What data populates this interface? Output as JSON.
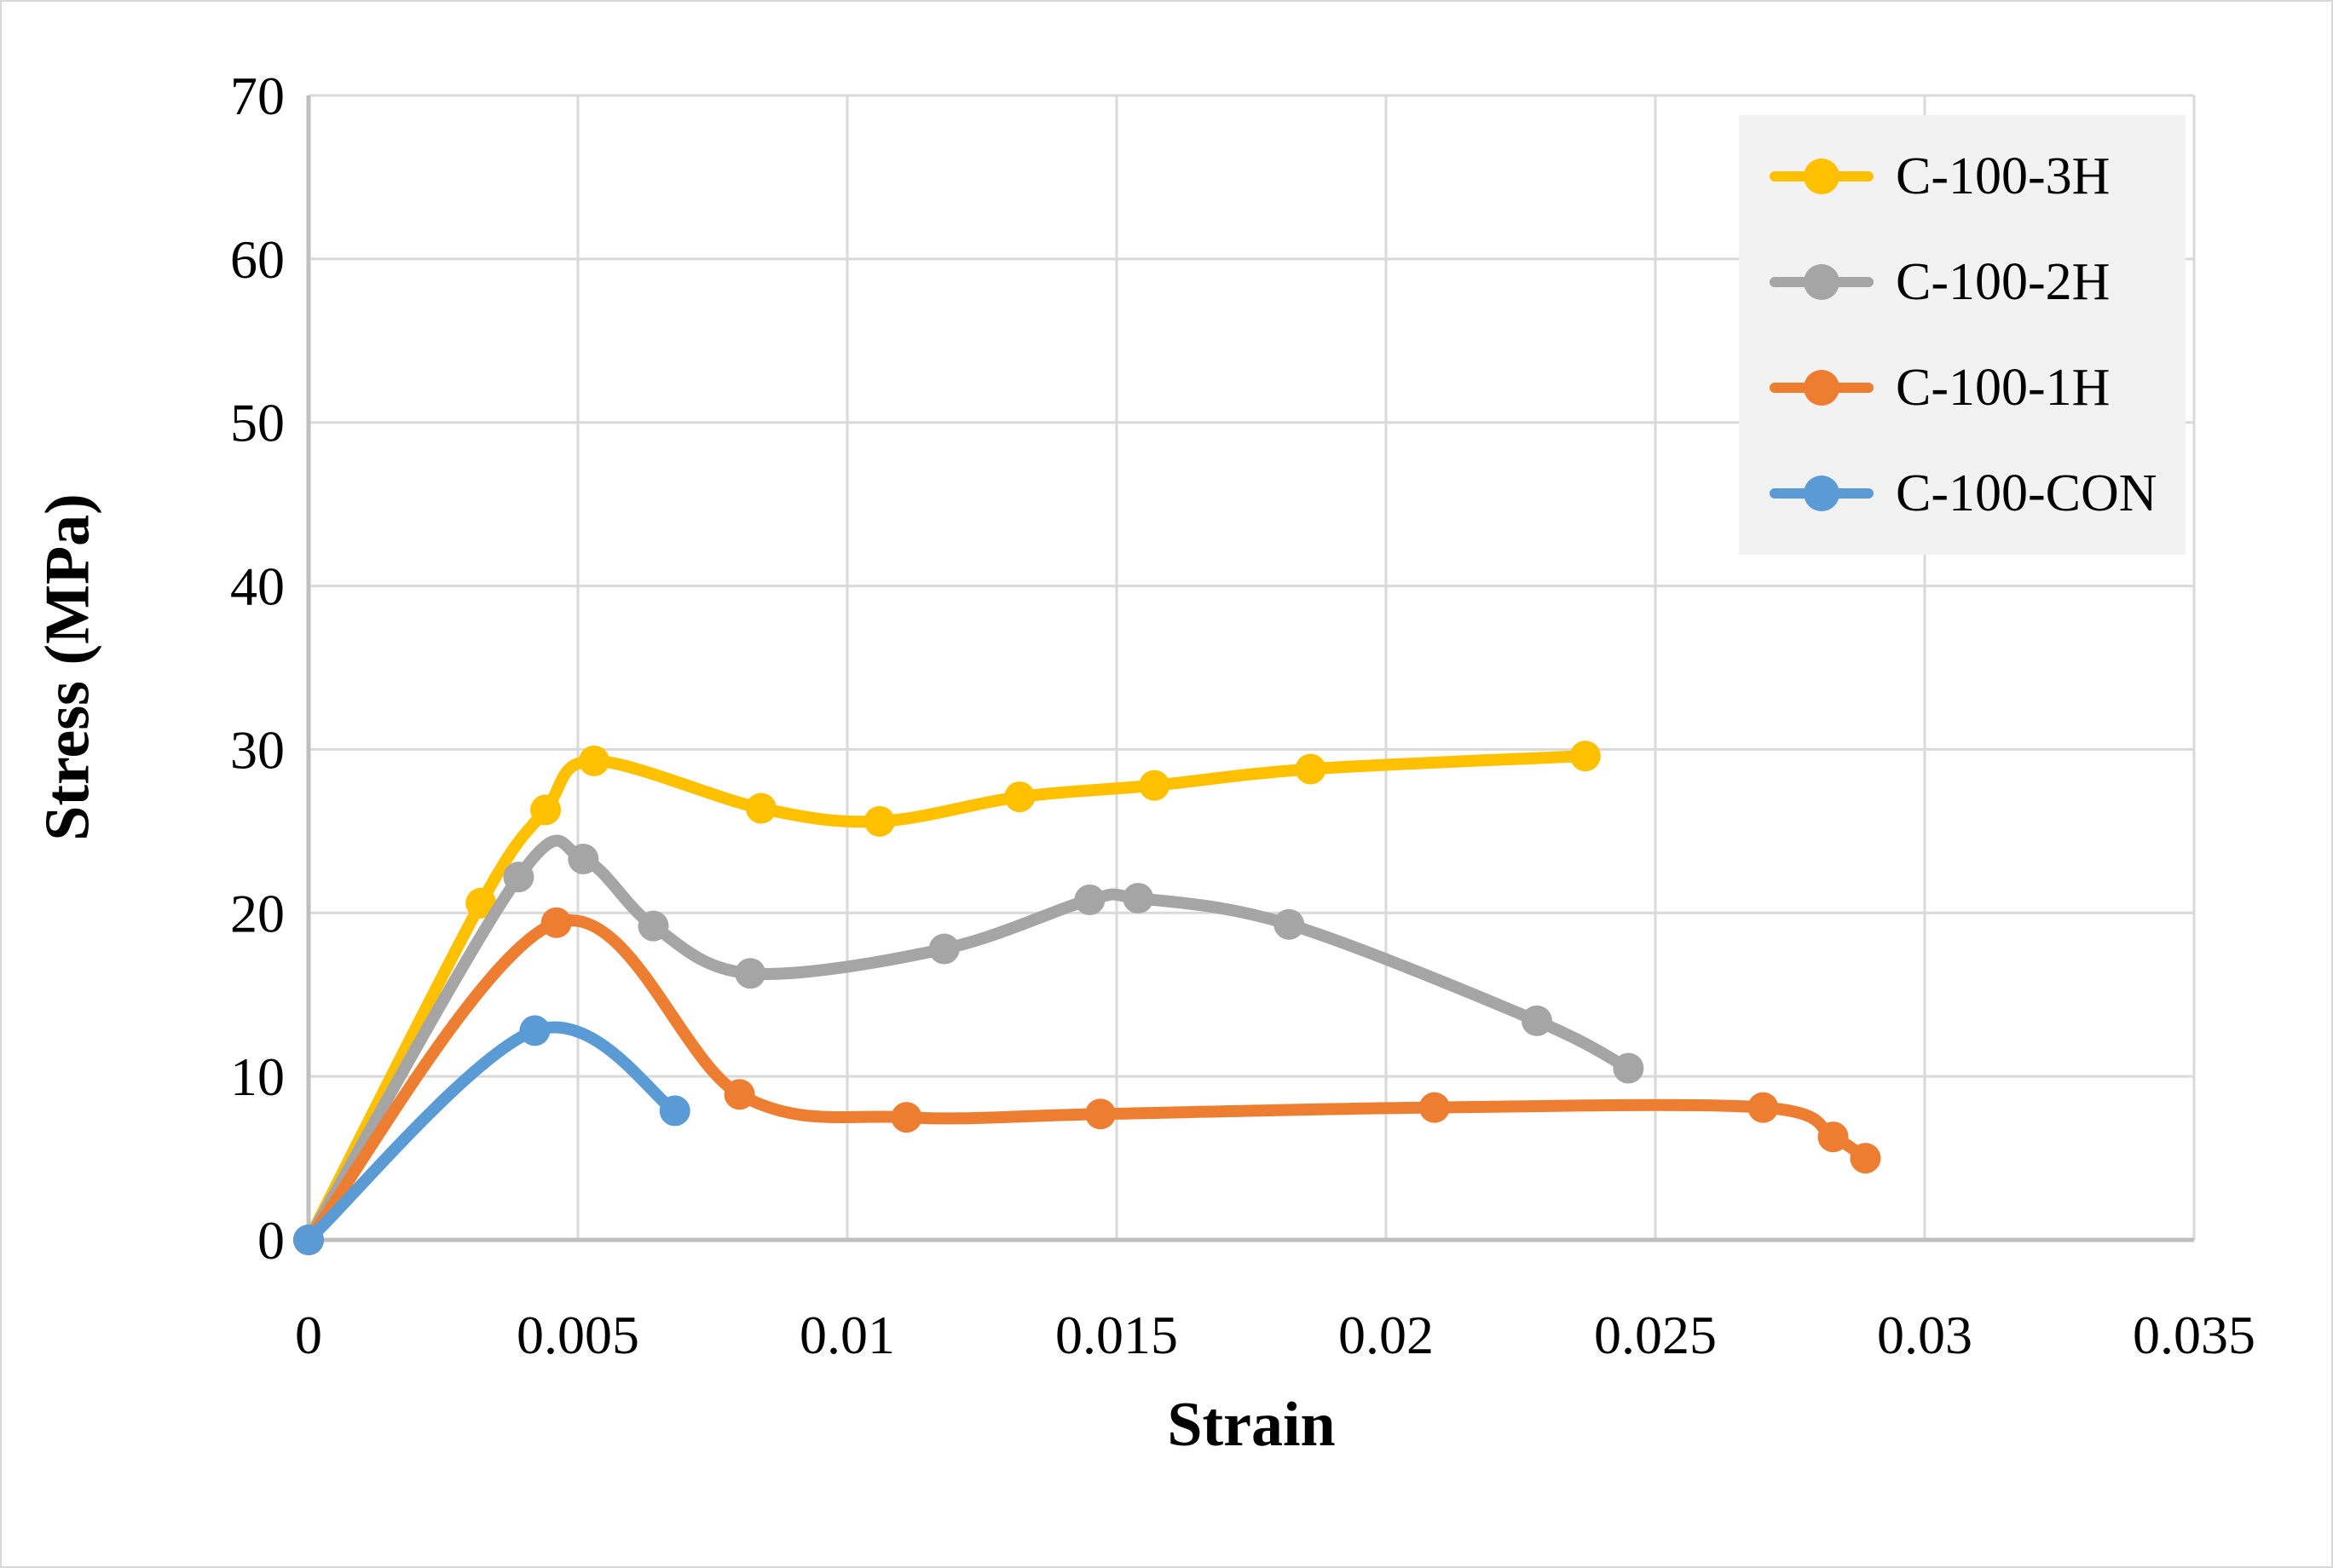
{
  "figure": {
    "background_color": "#FFFFFF",
    "border_color": "#D7D7D7"
  },
  "chart_data": {
    "type": "line",
    "title": "",
    "xlabel": "Strain",
    "ylabel": "Stress (MPa)",
    "xlim": [
      0,
      0.035
    ],
    "ylim": [
      0,
      70
    ],
    "x_ticks": [
      0,
      0.005,
      0.01,
      0.015,
      0.02,
      0.025,
      0.03,
      0.035
    ],
    "x_tick_labels": [
      "0",
      "0.005",
      "0.01",
      "0.015",
      "0.02",
      "0.025",
      "0.03",
      "0.035"
    ],
    "y_ticks": [
      0,
      10,
      20,
      30,
      40,
      50,
      60,
      70
    ],
    "y_tick_labels": [
      "0",
      "10",
      "20",
      "30",
      "40",
      "50",
      "60",
      "70"
    ],
    "grid": true,
    "smooth_lines": true,
    "gridline_color": "#D9D9D9",
    "axis_line_color": "#BFBFBF",
    "legend_position": "top-right",
    "legend_background": "#F2F2F2",
    "series": [
      {
        "name": "C-100-3H",
        "color": "#FFC000",
        "points": [
          [
            0,
            0
          ],
          [
            0.0032,
            20.6
          ],
          [
            0.0044,
            26.3
          ],
          [
            0.0053,
            29.3
          ],
          [
            0.0084,
            26.4
          ],
          [
            0.0106,
            25.6
          ],
          [
            0.0132,
            27.1
          ],
          [
            0.0157,
            27.8
          ],
          [
            0.0186,
            28.8
          ],
          [
            0.0237,
            29.6
          ]
        ]
      },
      {
        "name": "C-100-2H",
        "color": "#A5A5A5",
        "points": [
          [
            0,
            0
          ],
          [
            0.0039,
            22.2
          ],
          [
            0.0051,
            23.3
          ],
          [
            0.0064,
            19.2
          ],
          [
            0.0082,
            16.3
          ],
          [
            0.0118,
            17.8
          ],
          [
            0.0145,
            20.8
          ],
          [
            0.0154,
            20.9
          ],
          [
            0.0182,
            19.3
          ],
          [
            0.0228,
            13.4
          ],
          [
            0.0245,
            10.5
          ]
        ]
      },
      {
        "name": "C-100-1H",
        "color": "#ED7D31",
        "points": [
          [
            0,
            0
          ],
          [
            0.0046,
            19.4
          ],
          [
            0.008,
            8.9
          ],
          [
            0.0111,
            7.5
          ],
          [
            0.0147,
            7.7
          ],
          [
            0.0209,
            8.1
          ],
          [
            0.027,
            8.1
          ],
          [
            0.0283,
            6.3
          ],
          [
            0.0289,
            5.0
          ]
        ]
      },
      {
        "name": "C-100-CON",
        "color": "#5B9BD5",
        "points": [
          [
            0,
            0
          ],
          [
            0.0042,
            12.8
          ],
          [
            0.0068,
            7.9
          ]
        ]
      }
    ]
  }
}
